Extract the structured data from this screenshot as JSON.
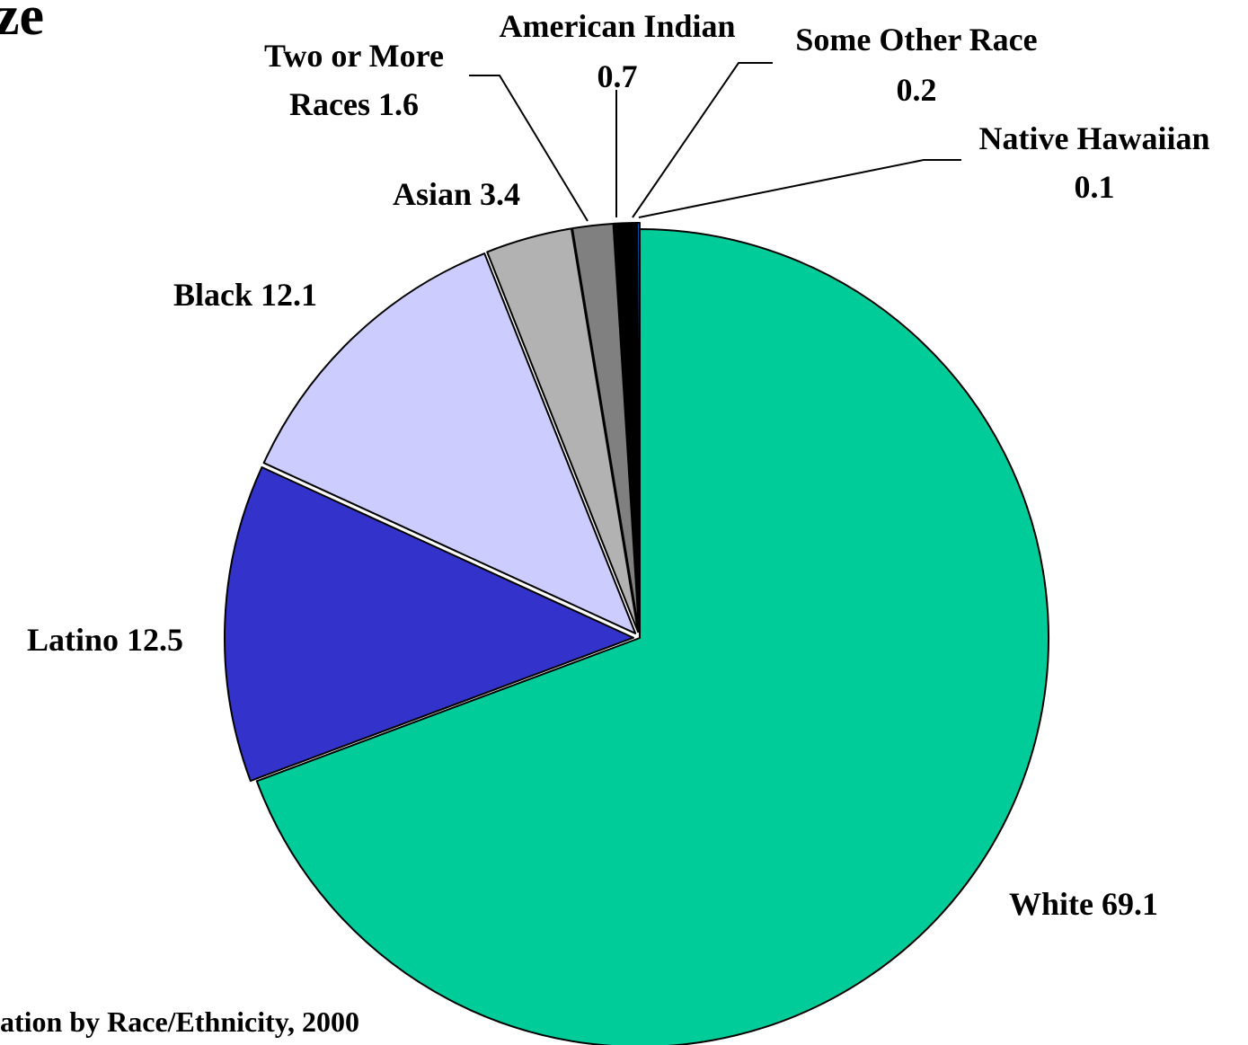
{
  "header": {
    "title_fragment": "ze",
    "title_color": "#333399"
  },
  "footer": {
    "caption_fragment": "ation by Race/Ethnicity, 2000"
  },
  "chart_data": {
    "type": "pie",
    "title": "",
    "units": "percent",
    "start": "12 o'clock",
    "direction": "clockwise",
    "slices": [
      {
        "label": "White 69.1",
        "label_lines": [
          "White 69.1"
        ],
        "value": 69.1,
        "color": "#00cc99",
        "exploded": false
      },
      {
        "label": "Latino 12.5",
        "label_lines": [
          "Latino 12.5"
        ],
        "value": 12.5,
        "color": "#3333cc",
        "exploded": true
      },
      {
        "label": "Black 12.1",
        "label_lines": [
          "Black 12.1"
        ],
        "value": 12.1,
        "color": "#ccccff",
        "exploded": true
      },
      {
        "label": "Asian 3.4",
        "label_lines": [
          "Asian 3.4"
        ],
        "value": 3.4,
        "color": "#b2b2b2",
        "exploded": true
      },
      {
        "label": "Two or More Races 1.6",
        "label_lines": [
          "Two or More",
          "Races 1.6"
        ],
        "value": 1.6,
        "color": "#808080",
        "exploded": true
      },
      {
        "label": "American Indian 0.7",
        "label_lines": [
          "American Indian",
          "0.7"
        ],
        "value": 0.7,
        "color": "#000000",
        "exploded": true
      },
      {
        "label": "Some Other Race 0.2",
        "label_lines": [
          "Some Other Race",
          "0.2"
        ],
        "value": 0.2,
        "color": "#000000",
        "exploded": true
      },
      {
        "label": "Native Hawaiian 0.1",
        "label_lines": [
          "Native Hawaiian",
          "0.1"
        ],
        "value": 0.1,
        "color": "#0066cc",
        "exploded": true
      }
    ]
  }
}
